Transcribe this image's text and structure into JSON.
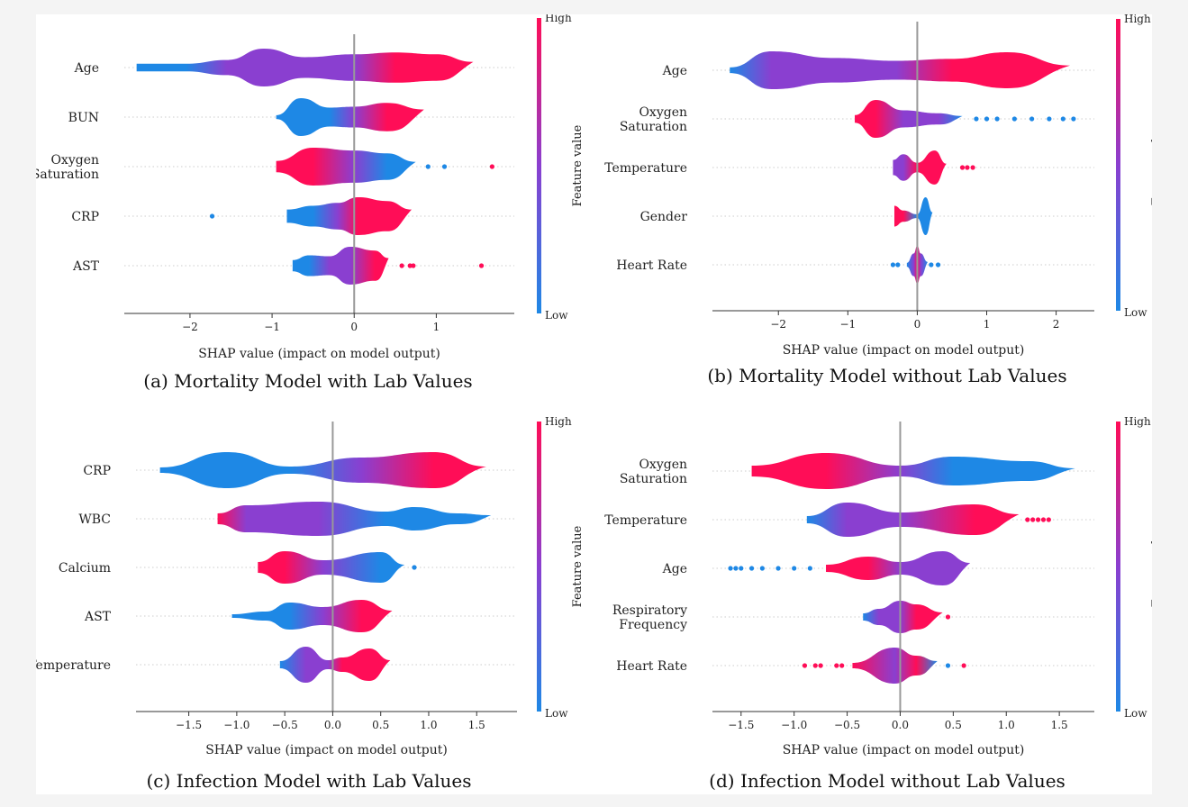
{
  "colors": {
    "low": "#1e88e5",
    "high": "#ff0d57",
    "axis": "#333333",
    "zero_line": "#999999",
    "guide": "#cccccc"
  },
  "chart_data": [
    {
      "type": "shap-beeswarm",
      "caption": "(a) Mortality Model with Lab Values",
      "xlabel": "SHAP value (impact on model output)",
      "xlim": [
        -2.8,
        1.95
      ],
      "xticks": [
        -2,
        -1,
        0,
        1
      ],
      "colorbar": {
        "high_label": "High",
        "low_label": "Low",
        "title": "Feature value"
      },
      "features": [
        {
          "label": [
            "Age"
          ],
          "shape": [
            [
              -2.65,
              0.2,
              "low"
            ],
            [
              -2.05,
              0.2,
              "low"
            ],
            [
              -1.55,
              0.4,
              "mid"
            ],
            [
              -1.1,
              1.0,
              "mid"
            ],
            [
              -0.6,
              0.55,
              "mid"
            ],
            [
              0.0,
              0.7,
              "mid"
            ],
            [
              0.5,
              0.8,
              "high"
            ],
            [
              1.0,
              0.7,
              "high"
            ],
            [
              1.45,
              0.3,
              "high"
            ]
          ],
          "outliers": []
        },
        {
          "label": [
            "BUN"
          ],
          "shape": [
            [
              -0.95,
              0.1,
              "low"
            ],
            [
              -0.65,
              1.0,
              "low"
            ],
            [
              -0.3,
              0.5,
              "low"
            ],
            [
              0.0,
              0.55,
              "mid"
            ],
            [
              0.4,
              0.75,
              "high"
            ],
            [
              0.85,
              0.4,
              "high"
            ]
          ],
          "outliers": []
        },
        {
          "label": [
            "Oxygen",
            "Saturation"
          ],
          "shape": [
            [
              -0.95,
              0.3,
              "high"
            ],
            [
              -0.5,
              1.0,
              "high"
            ],
            [
              0.0,
              0.85,
              "mid"
            ],
            [
              0.4,
              0.7,
              "low"
            ],
            [
              0.75,
              0.25,
              "low"
            ]
          ],
          "outliers": [
            [
              0.9,
              "low"
            ],
            [
              1.1,
              "low"
            ],
            [
              1.68,
              "high"
            ]
          ]
        },
        {
          "label": [
            "CRP"
          ],
          "shape": [
            [
              -0.82,
              0.35,
              "low"
            ],
            [
              -0.5,
              0.55,
              "low"
            ],
            [
              -0.2,
              0.7,
              "mid"
            ],
            [
              0.05,
              1.0,
              "high"
            ],
            [
              0.4,
              0.8,
              "high"
            ],
            [
              0.7,
              0.35,
              "high"
            ]
          ],
          "outliers": [
            [
              -1.73,
              "low"
            ]
          ]
        },
        {
          "label": [
            "AST"
          ],
          "shape": [
            [
              -0.75,
              0.3,
              "low"
            ],
            [
              -0.55,
              0.55,
              "low"
            ],
            [
              -0.3,
              0.5,
              "mid"
            ],
            [
              -0.05,
              1.0,
              "mid"
            ],
            [
              0.25,
              0.8,
              "high"
            ],
            [
              0.42,
              0.4,
              "high"
            ]
          ],
          "outliers": [
            [
              0.58,
              "high"
            ],
            [
              0.68,
              "high"
            ],
            [
              0.72,
              "high"
            ],
            [
              1.55,
              "high"
            ]
          ]
        }
      ]
    },
    {
      "type": "shap-beeswarm",
      "caption": "(b) Mortality Model without Lab Values",
      "xlabel": "SHAP value (impact on model output)",
      "xlim": [
        -2.95,
        2.55
      ],
      "xticks": [
        -2,
        -1,
        0,
        1,
        2
      ],
      "colorbar": {
        "high_label": "High",
        "low_label": "Low",
        "title": "Feature value"
      },
      "features": [
        {
          "label": [
            "Age"
          ],
          "shape": [
            [
              -2.7,
              0.15,
              "low"
            ],
            [
              -2.1,
              1.0,
              "mid"
            ],
            [
              -1.2,
              0.65,
              "mid"
            ],
            [
              -0.3,
              0.5,
              "mid"
            ],
            [
              0.5,
              0.6,
              "high"
            ],
            [
              1.3,
              0.95,
              "high"
            ],
            [
              2.2,
              0.25,
              "high"
            ]
          ],
          "outliers": []
        },
        {
          "label": [
            "Oxygen",
            "Saturation"
          ],
          "shape": [
            [
              -0.9,
              0.2,
              "high"
            ],
            [
              -0.6,
              1.0,
              "high"
            ],
            [
              -0.2,
              0.45,
              "mid"
            ],
            [
              0.3,
              0.3,
              "mid"
            ],
            [
              0.65,
              0.15,
              "low"
            ]
          ],
          "outliers": [
            [
              0.85,
              "low"
            ],
            [
              1.0,
              "low"
            ],
            [
              1.15,
              "low"
            ],
            [
              1.4,
              "low"
            ],
            [
              1.65,
              "low"
            ],
            [
              1.9,
              "low"
            ],
            [
              2.1,
              "low"
            ],
            [
              2.25,
              "low"
            ]
          ]
        },
        {
          "label": [
            "Temperature"
          ],
          "shape": [
            [
              -0.35,
              0.4,
              "mid"
            ],
            [
              -0.2,
              0.7,
              "mid"
            ],
            [
              0.0,
              0.25,
              "high"
            ],
            [
              0.25,
              0.9,
              "high"
            ],
            [
              0.42,
              0.2,
              "high"
            ]
          ],
          "outliers": [
            [
              0.65,
              "high"
            ],
            [
              0.72,
              "high"
            ],
            [
              0.8,
              "high"
            ]
          ]
        },
        {
          "label": [
            "Gender"
          ],
          "shape": [
            [
              -0.33,
              0.55,
              "high"
            ],
            [
              -0.2,
              0.3,
              "high"
            ],
            [
              0.0,
              0.1,
              "low"
            ],
            [
              0.12,
              1.0,
              "low"
            ],
            [
              0.22,
              0.2,
              "low"
            ]
          ],
          "outliers": []
        },
        {
          "label": [
            "Heart Rate"
          ],
          "shape": [
            [
              -0.15,
              0.1,
              "low"
            ],
            [
              -0.05,
              0.6,
              "mid"
            ],
            [
              0.0,
              1.0,
              "high"
            ],
            [
              0.05,
              0.6,
              "mid"
            ],
            [
              0.15,
              0.15,
              "low"
            ]
          ],
          "outliers": [
            [
              -0.35,
              "low"
            ],
            [
              -0.28,
              "low"
            ],
            [
              0.2,
              "low"
            ],
            [
              0.3,
              "low"
            ]
          ]
        }
      ]
    },
    {
      "type": "shap-beeswarm",
      "caption": "(c) Infection Model with Lab Values",
      "xlabel": "SHAP value (impact on model output)",
      "xlim": [
        -2.05,
        1.92
      ],
      "xticks": [
        -1.5,
        -1.0,
        -0.5,
        0.0,
        0.5,
        1.0,
        1.5
      ],
      "colorbar": {
        "high_label": "High",
        "low_label": "Low",
        "title": "Feature value"
      },
      "features": [
        {
          "label": [
            "CRP"
          ],
          "shape": [
            [
              -1.8,
              0.15,
              "low"
            ],
            [
              -1.1,
              1.0,
              "low"
            ],
            [
              -0.45,
              0.2,
              "low"
            ],
            [
              0.3,
              0.7,
              "mid"
            ],
            [
              1.05,
              1.0,
              "high"
            ],
            [
              1.6,
              0.2,
              "high"
            ]
          ],
          "outliers": []
        },
        {
          "label": [
            "WBC"
          ],
          "shape": [
            [
              -1.2,
              0.3,
              "high"
            ],
            [
              -0.9,
              0.75,
              "mid"
            ],
            [
              -0.15,
              0.95,
              "mid"
            ],
            [
              0.55,
              0.4,
              "low"
            ],
            [
              0.85,
              0.65,
              "low"
            ],
            [
              1.3,
              0.3,
              "low"
            ],
            [
              1.65,
              0.2,
              "low"
            ]
          ],
          "outliers": []
        },
        {
          "label": [
            "Calcium"
          ],
          "shape": [
            [
              -0.78,
              0.3,
              "high"
            ],
            [
              -0.5,
              0.9,
              "high"
            ],
            [
              -0.1,
              0.4,
              "mid"
            ],
            [
              0.5,
              0.85,
              "low"
            ],
            [
              0.75,
              0.15,
              "low"
            ]
          ],
          "outliers": [
            [
              0.85,
              "low"
            ]
          ]
        },
        {
          "label": [
            "AST"
          ],
          "shape": [
            [
              -1.05,
              0.1,
              "low"
            ],
            [
              -0.7,
              0.25,
              "low"
            ],
            [
              -0.45,
              0.75,
              "low"
            ],
            [
              -0.1,
              0.5,
              "mid"
            ],
            [
              0.3,
              0.9,
              "high"
            ],
            [
              0.62,
              0.3,
              "high"
            ]
          ],
          "outliers": []
        },
        {
          "label": [
            "Temperature"
          ],
          "shape": [
            [
              -0.55,
              0.2,
              "low"
            ],
            [
              -0.28,
              1.0,
              "mid"
            ],
            [
              -0.05,
              0.25,
              "mid"
            ],
            [
              0.1,
              0.4,
              "high"
            ],
            [
              0.38,
              0.9,
              "high"
            ],
            [
              0.6,
              0.25,
              "high"
            ]
          ],
          "outliers": []
        }
      ]
    },
    {
      "type": "shap-beeswarm",
      "caption": "(d) Infection Model without Lab Values",
      "xlabel": "SHAP value (impact on model output)",
      "xlim": [
        -1.77,
        1.83
      ],
      "xticks": [
        -1.5,
        -1.0,
        -0.5,
        0.0,
        0.5,
        1.0,
        1.5
      ],
      "colorbar": {
        "high_label": "High",
        "low_label": "Low",
        "title": "Feature value"
      },
      "features": [
        {
          "label": [
            "Oxygen",
            "Saturation"
          ],
          "shape": [
            [
              -1.4,
              0.3,
              "high"
            ],
            [
              -0.7,
              1.0,
              "high"
            ],
            [
              0.0,
              0.3,
              "mid"
            ],
            [
              0.5,
              0.8,
              "low"
            ],
            [
              1.2,
              0.55,
              "low"
            ],
            [
              1.65,
              0.15,
              "low"
            ]
          ],
          "outliers": []
        },
        {
          "label": [
            "Temperature"
          ],
          "shape": [
            [
              -0.88,
              0.2,
              "low"
            ],
            [
              -0.5,
              0.95,
              "mid"
            ],
            [
              0.0,
              0.4,
              "mid"
            ],
            [
              0.7,
              0.85,
              "high"
            ],
            [
              1.12,
              0.3,
              "high"
            ]
          ],
          "outliers": [
            [
              1.2,
              "high"
            ],
            [
              1.25,
              "high"
            ],
            [
              1.3,
              "high"
            ],
            [
              1.35,
              "high"
            ],
            [
              1.4,
              "high"
            ]
          ]
        },
        {
          "label": [
            "Age"
          ],
          "shape": [
            [
              -0.7,
              0.2,
              "high"
            ],
            [
              -0.3,
              0.65,
              "high"
            ],
            [
              0.0,
              0.35,
              "mid"
            ],
            [
              0.4,
              0.95,
              "mid"
            ],
            [
              0.66,
              0.3,
              "mid"
            ]
          ],
          "outliers": [
            [
              -1.6,
              "low"
            ],
            [
              -1.55,
              "low"
            ],
            [
              -1.5,
              "low"
            ],
            [
              -1.4,
              "low"
            ],
            [
              -1.3,
              "low"
            ],
            [
              -1.15,
              "low"
            ],
            [
              -1.0,
              "low"
            ],
            [
              -0.85,
              "low"
            ]
          ]
        },
        {
          "label": [
            "Respiratory",
            "Frequency"
          ],
          "shape": [
            [
              -0.35,
              0.2,
              "low"
            ],
            [
              -0.2,
              0.45,
              "mid"
            ],
            [
              0.0,
              0.9,
              "mid"
            ],
            [
              0.15,
              0.7,
              "high"
            ],
            [
              0.4,
              0.25,
              "high"
            ]
          ],
          "outliers": [
            [
              0.45,
              "high"
            ]
          ]
        },
        {
          "label": [
            "Heart Rate"
          ],
          "shape": [
            [
              -0.45,
              0.15,
              "high"
            ],
            [
              -0.05,
              1.0,
              "mid"
            ],
            [
              0.15,
              0.55,
              "high"
            ],
            [
              0.35,
              0.25,
              "low"
            ]
          ],
          "outliers": [
            [
              -0.9,
              "high"
            ],
            [
              -0.8,
              "high"
            ],
            [
              -0.75,
              "high"
            ],
            [
              -0.6,
              "high"
            ],
            [
              -0.55,
              "high"
            ],
            [
              0.45,
              "low"
            ],
            [
              0.6,
              "high"
            ]
          ]
        }
      ]
    }
  ]
}
